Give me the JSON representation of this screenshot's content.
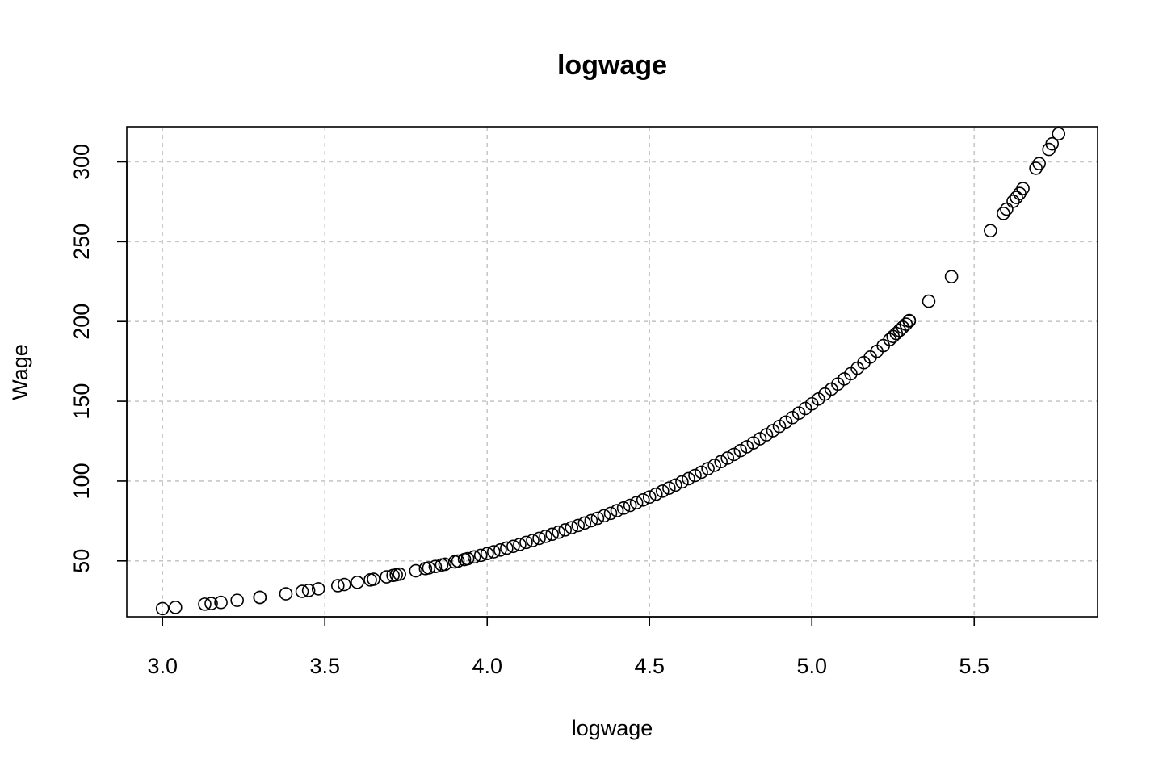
{
  "chart_data": {
    "type": "scatter",
    "title": "logwage",
    "xlabel": "logwage",
    "ylabel": "Wage",
    "xlim": [
      2.89,
      5.88
    ],
    "ylim": [
      15,
      322
    ],
    "xticks": [
      3.0,
      3.5,
      4.0,
      4.5,
      5.0,
      5.5
    ],
    "xtick_labels": [
      "3.0",
      "3.5",
      "4.0",
      "4.5",
      "5.0",
      "5.5"
    ],
    "yticks": [
      50,
      100,
      150,
      200,
      250,
      300
    ],
    "ytick_labels": [
      "50",
      "100",
      "150",
      "200",
      "250",
      "300"
    ],
    "grid": true,
    "relationship": "y = exp(x)",
    "points": [
      [
        3.0,
        20.1
      ],
      [
        3.04,
        20.9
      ],
      [
        3.13,
        22.9
      ],
      [
        3.15,
        23.3
      ],
      [
        3.18,
        24.0
      ],
      [
        3.23,
        25.3
      ],
      [
        3.3,
        27.1
      ],
      [
        3.3,
        27.2
      ],
      [
        3.38,
        29.4
      ],
      [
        3.43,
        30.9
      ],
      [
        3.45,
        31.5
      ],
      [
        3.48,
        32.5
      ],
      [
        3.54,
        34.5
      ],
      [
        3.56,
        35.2
      ],
      [
        3.6,
        36.6
      ],
      [
        3.64,
        38.1
      ],
      [
        3.65,
        38.5
      ],
      [
        3.69,
        40.0
      ],
      [
        3.71,
        40.9
      ],
      [
        3.72,
        41.3
      ],
      [
        3.73,
        41.7
      ],
      [
        3.78,
        43.8
      ],
      [
        3.81,
        45.2
      ],
      [
        3.82,
        45.6
      ],
      [
        3.84,
        46.5
      ],
      [
        3.86,
        47.5
      ],
      [
        3.87,
        47.9
      ],
      [
        3.9,
        49.4
      ],
      [
        3.91,
        49.9
      ],
      [
        3.93,
        50.9
      ],
      [
        3.94,
        51.4
      ],
      [
        3.96,
        52.5
      ],
      [
        3.98,
        53.5
      ],
      [
        4.0,
        54.6
      ],
      [
        4.02,
        55.7
      ],
      [
        4.04,
        56.8
      ],
      [
        4.06,
        58.0
      ],
      [
        4.08,
        59.1
      ],
      [
        4.1,
        60.3
      ],
      [
        4.12,
        61.6
      ],
      [
        4.14,
        62.8
      ],
      [
        4.16,
        64.1
      ],
      [
        4.18,
        65.4
      ],
      [
        4.2,
        66.7
      ],
      [
        4.22,
        68.0
      ],
      [
        4.24,
        69.4
      ],
      [
        4.26,
        70.8
      ],
      [
        4.28,
        72.2
      ],
      [
        4.3,
        73.7
      ],
      [
        4.32,
        75.2
      ],
      [
        4.34,
        76.7
      ],
      [
        4.36,
        78.3
      ],
      [
        4.38,
        79.8
      ],
      [
        4.4,
        81.5
      ],
      [
        4.42,
        83.1
      ],
      [
        4.44,
        84.8
      ],
      [
        4.46,
        86.5
      ],
      [
        4.48,
        88.2
      ],
      [
        4.5,
        90.0
      ],
      [
        4.52,
        91.8
      ],
      [
        4.54,
        93.7
      ],
      [
        4.56,
        95.6
      ],
      [
        4.58,
        97.5
      ],
      [
        4.6,
        99.5
      ],
      [
        4.62,
        101.5
      ],
      [
        4.64,
        103.5
      ],
      [
        4.66,
        105.6
      ],
      [
        4.68,
        107.8
      ],
      [
        4.7,
        109.9
      ],
      [
        4.72,
        112.2
      ],
      [
        4.74,
        114.4
      ],
      [
        4.76,
        116.7
      ],
      [
        4.78,
        119.1
      ],
      [
        4.8,
        121.5
      ],
      [
        4.82,
        123.9
      ],
      [
        4.84,
        126.5
      ],
      [
        4.86,
        129.0
      ],
      [
        4.88,
        131.6
      ],
      [
        4.9,
        134.3
      ],
      [
        4.92,
        137.0
      ],
      [
        4.94,
        139.8
      ],
      [
        4.96,
        142.6
      ],
      [
        4.98,
        145.5
      ],
      [
        5.0,
        148.4
      ],
      [
        5.02,
        151.4
      ],
      [
        5.04,
        154.5
      ],
      [
        5.06,
        157.6
      ],
      [
        5.08,
        160.8
      ],
      [
        5.1,
        164.0
      ],
      [
        5.12,
        167.3
      ],
      [
        5.14,
        170.7
      ],
      [
        5.16,
        174.2
      ],
      [
        5.18,
        177.7
      ],
      [
        5.2,
        181.3
      ],
      [
        5.22,
        184.9
      ],
      [
        5.24,
        188.7
      ],
      [
        5.25,
        190.6
      ],
      [
        5.26,
        192.5
      ],
      [
        5.27,
        194.4
      ],
      [
        5.28,
        196.4
      ],
      [
        5.29,
        198.3
      ],
      [
        5.3,
        200.3
      ],
      [
        5.3,
        200.6
      ],
      [
        5.36,
        212.7
      ],
      [
        5.43,
        228.1
      ],
      [
        5.55,
        256.9
      ],
      [
        5.59,
        267.7
      ],
      [
        5.6,
        270.4
      ],
      [
        5.62,
        275.3
      ],
      [
        5.63,
        277.7
      ],
      [
        5.64,
        280.2
      ],
      [
        5.65,
        283.3
      ],
      [
        5.69,
        296.0
      ],
      [
        5.7,
        298.9
      ],
      [
        5.73,
        307.8
      ],
      [
        5.74,
        311.3
      ],
      [
        5.76,
        317.6
      ]
    ]
  }
}
